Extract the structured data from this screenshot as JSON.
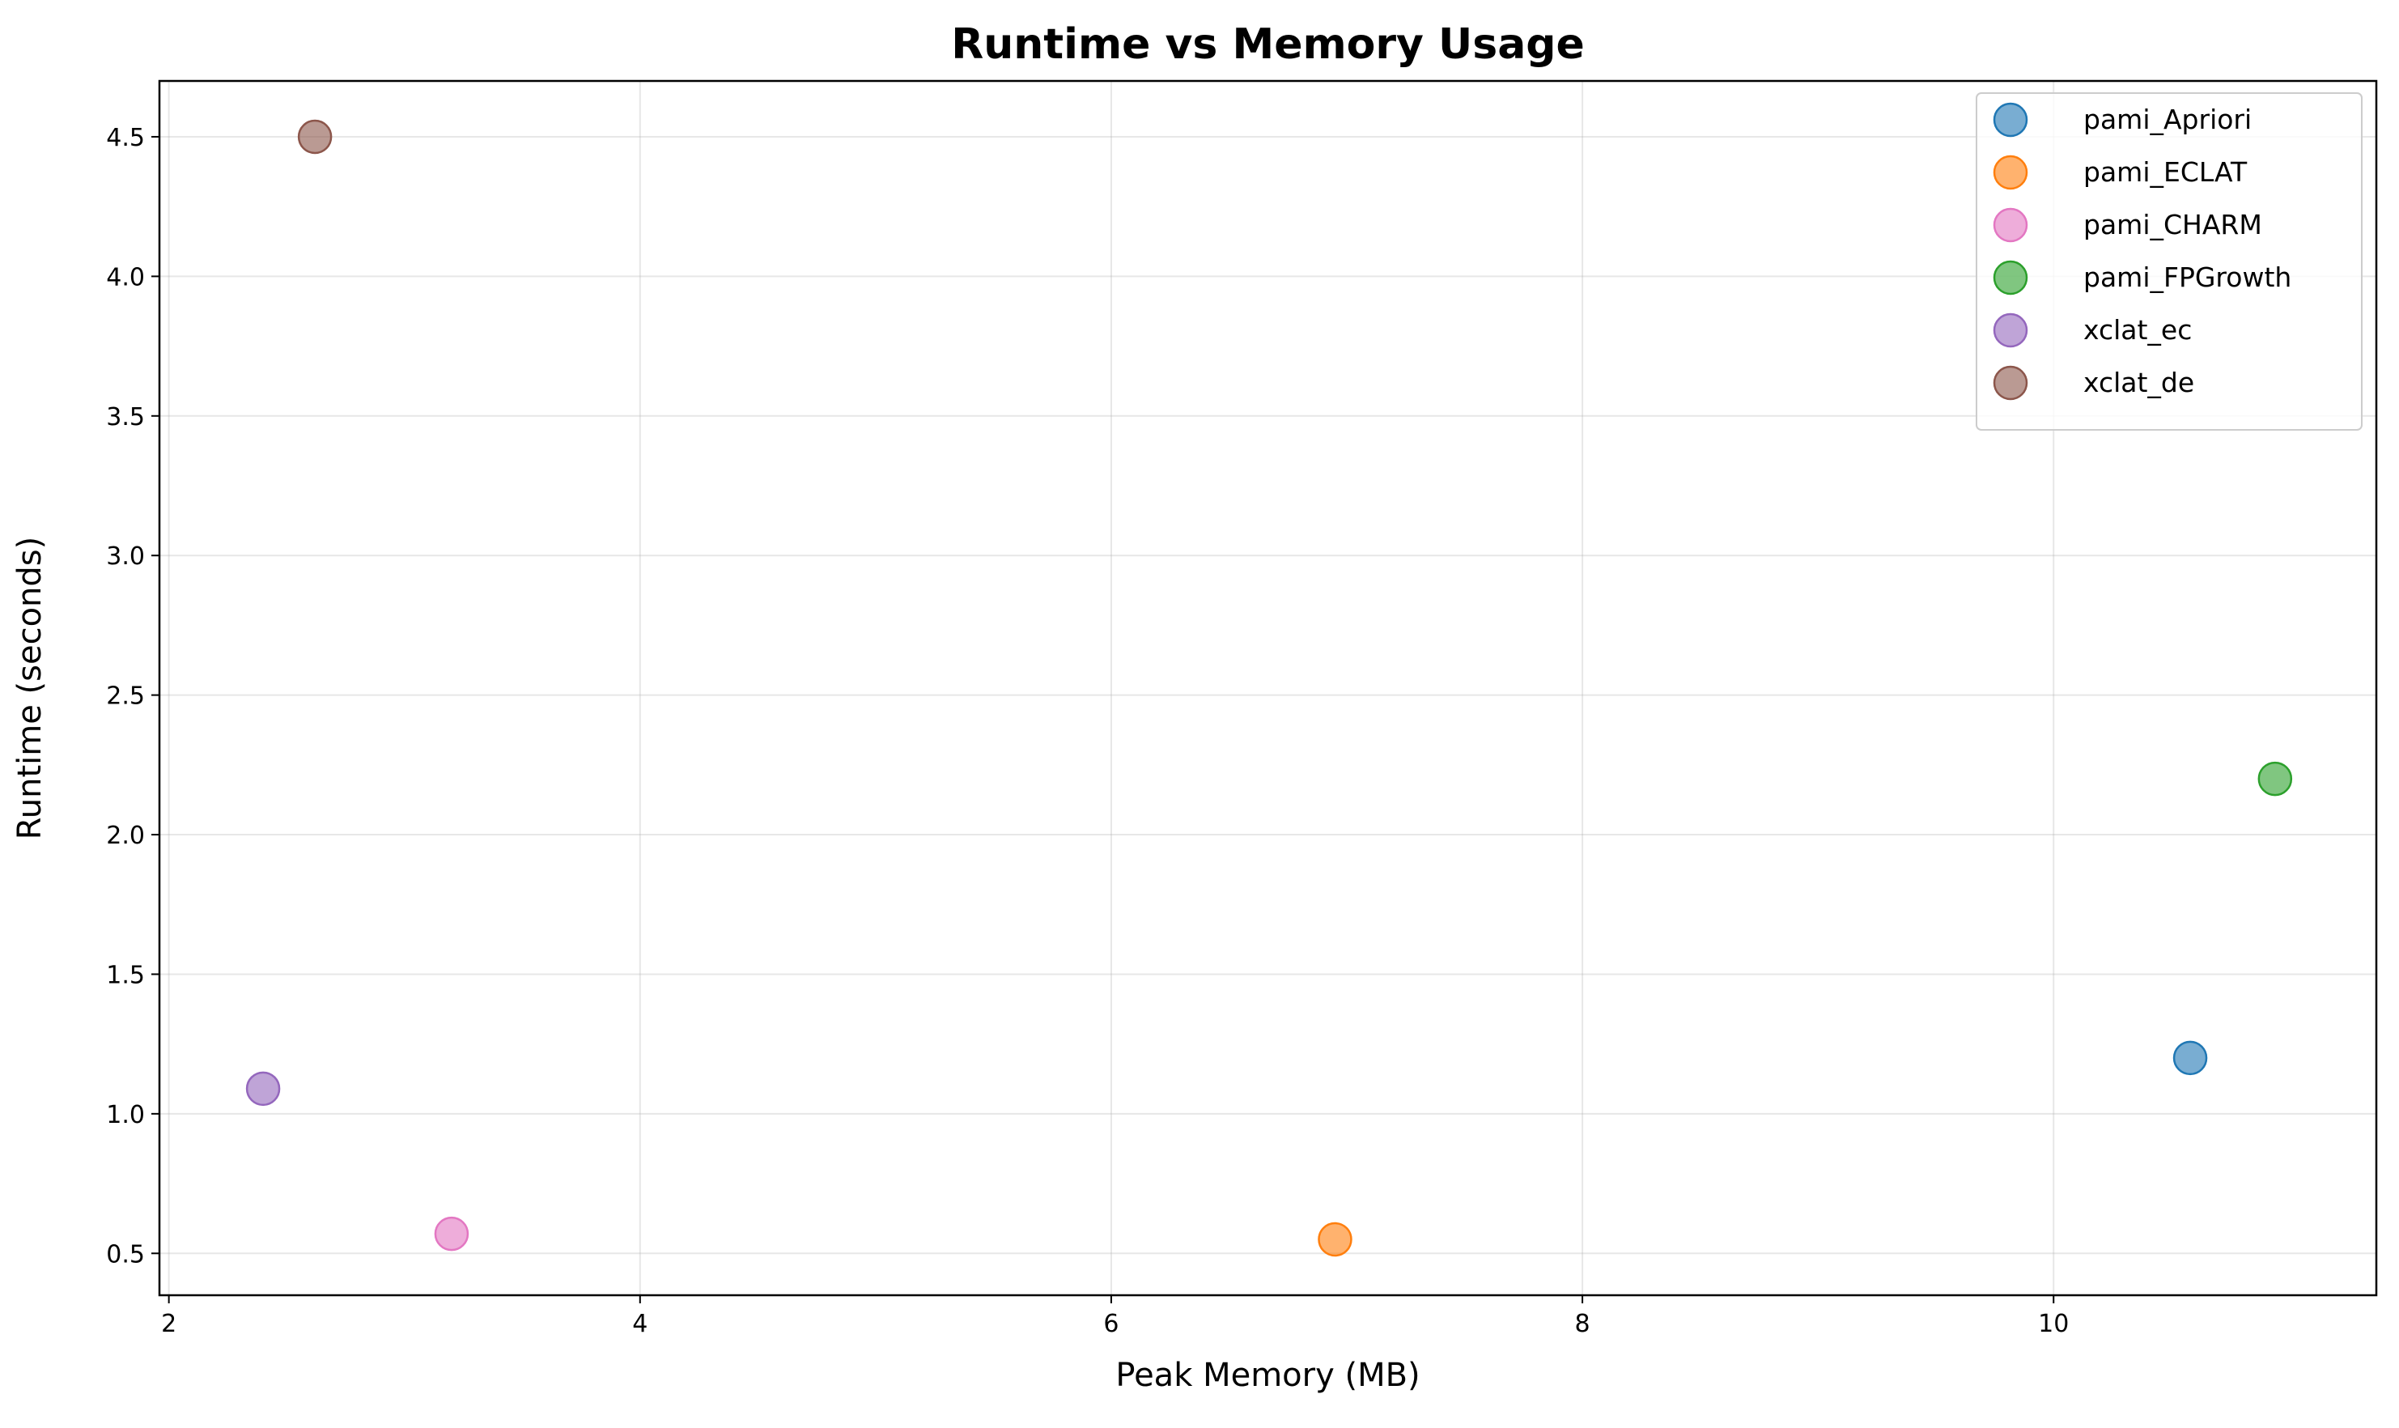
{
  "chart_data": {
    "type": "scatter",
    "title": "Runtime vs Memory Usage",
    "xlabel": "Peak Memory (MB)",
    "ylabel": "Runtime (seconds)",
    "xlim": [
      1.96,
      11.37
    ],
    "ylim": [
      0.35,
      4.7
    ],
    "xticks": [
      "2",
      "4",
      "6",
      "8",
      "10"
    ],
    "yticks": [
      "0.5",
      "1.0",
      "1.5",
      "2.0",
      "2.5",
      "3.0",
      "3.5",
      "4.0",
      "4.5"
    ],
    "grid": true,
    "legend_position": "top-right",
    "series": [
      {
        "name": "pami_Apriori",
        "color": "#1f77b4",
        "x": [
          10.58
        ],
        "y": [
          1.2
        ]
      },
      {
        "name": "pami_ECLAT",
        "color": "#ff7f0e",
        "x": [
          6.95
        ],
        "y": [
          0.55
        ]
      },
      {
        "name": "pami_CHARM",
        "color": "#e377c2",
        "x": [
          3.2
        ],
        "y": [
          0.57
        ]
      },
      {
        "name": "pami_FPGrowth",
        "color": "#2ca02c",
        "x": [
          10.94
        ],
        "y": [
          2.2
        ]
      },
      {
        "name": "xclat_ec",
        "color": "#9467bd",
        "x": [
          2.4
        ],
        "y": [
          1.09
        ]
      },
      {
        "name": "xclat_de",
        "color": "#8c564b",
        "x": [
          2.62
        ],
        "y": [
          4.5
        ]
      }
    ]
  }
}
